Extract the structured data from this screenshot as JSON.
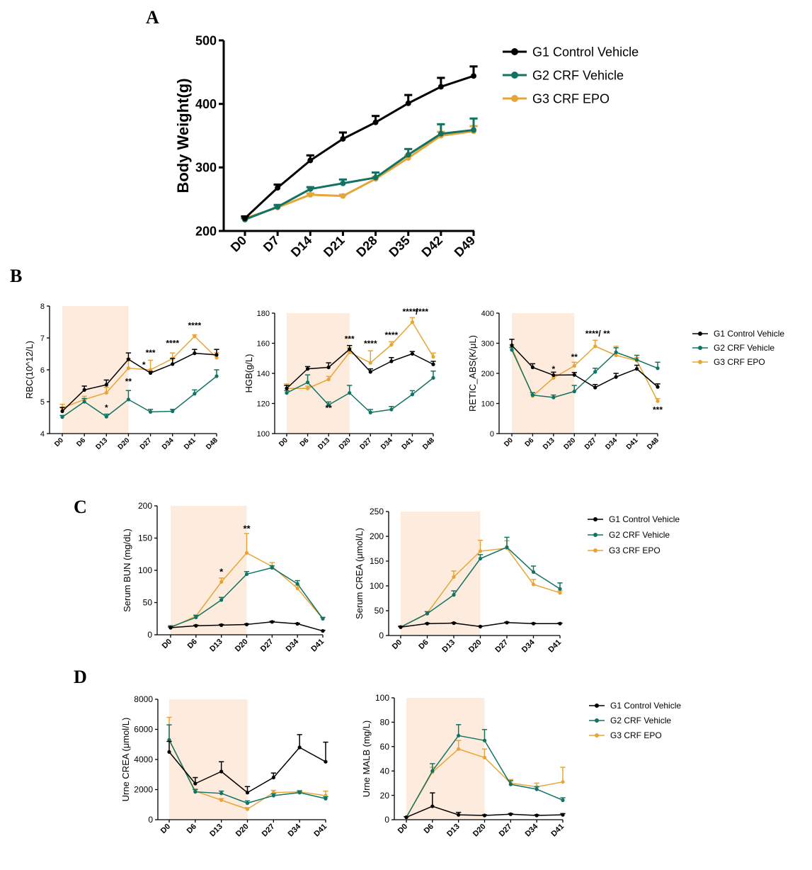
{
  "colors": {
    "G1": "#000000",
    "G2": "#127363",
    "G3": "#E8A537",
    "shade": "#FDEBDD",
    "sigBlack": "#000000",
    "sigGreen": "#127363"
  },
  "panel_labels": [
    "A",
    "B",
    "C",
    "D"
  ],
  "chart_data": [
    {
      "id": "A",
      "type": "line",
      "title": "",
      "xlabel": "",
      "ylabel": "Body Weight(g)",
      "categories": [
        "D0",
        "D7",
        "D14",
        "D21",
        "D28",
        "D35",
        "D42",
        "D49"
      ],
      "ylim": [
        200,
        500
      ],
      "yticks": [
        200,
        300,
        400,
        500
      ],
      "grid": false,
      "legend": "top-right",
      "series": [
        {
          "name": "G1 Control Vehicle",
          "values": [
            220,
            268,
            311,
            345,
            371,
            401,
            427,
            444
          ],
          "err": [
            3,
            5,
            8,
            10,
            10,
            13,
            14,
            15
          ]
        },
        {
          "name": "G2 CRF Vehicle",
          "values": [
            218,
            238,
            266,
            275,
            284,
            320,
            353,
            359
          ],
          "err": [
            2,
            3,
            3,
            6,
            8,
            9,
            15,
            18
          ]
        },
        {
          "name": "G3 CRF EPO",
          "values": [
            220,
            237,
            257,
            255,
            282,
            315,
            350,
            357
          ],
          "err": [
            2,
            2,
            2,
            2,
            3,
            4,
            6,
            8
          ]
        }
      ],
      "annotations": []
    },
    {
      "id": "B1",
      "type": "line",
      "ylabel": "RBC(10^12/L)",
      "categories": [
        "D0",
        "D6",
        "D13",
        "D20",
        "D27",
        "D34",
        "D41",
        "D48"
      ],
      "ylim": [
        4,
        8
      ],
      "yticks": [
        4,
        5,
        6,
        7,
        8
      ],
      "shade": [
        0,
        3
      ],
      "series": [
        {
          "name": "G1 Control Vehicle",
          "values": [
            4.7,
            5.37,
            5.53,
            6.33,
            5.9,
            6.18,
            6.52,
            6.47
          ],
          "err": [
            0.12,
            0.12,
            0.15,
            0.2,
            0.05,
            0.18,
            0.12,
            0.17
          ]
        },
        {
          "name": "G2 CRF Vehicle",
          "values": [
            4.52,
            5.0,
            4.53,
            5.07,
            4.68,
            4.7,
            5.25,
            5.8
          ],
          "err": [
            0.05,
            0.1,
            0.08,
            0.28,
            0.08,
            0.06,
            0.12,
            0.2
          ]
        },
        {
          "name": "G3 CRF EPO",
          "values": [
            4.8,
            5.07,
            5.28,
            6.05,
            6.0,
            6.35,
            7.05,
            6.38
          ],
          "err": [
            0.12,
            0.1,
            0.17,
            0.3,
            0.3,
            0.18,
            0.05,
            0.15
          ]
        }
      ],
      "annotations": [
        {
          "text": "*",
          "x": 2,
          "y": 4.72,
          "color": "G2"
        },
        {
          "text": "**",
          "x": 3,
          "y": 5.55,
          "color": "G2"
        },
        {
          "text": "***",
          "x": 4,
          "y": 6.45,
          "color": "G2"
        },
        {
          "text": "*",
          "x": 3.7,
          "y": 6.07,
          "color": "G2"
        },
        {
          "text": "****",
          "x": 5,
          "y": 6.75,
          "color": "G2"
        },
        {
          "text": "****",
          "x": 6,
          "y": 7.3,
          "color": "G2"
        }
      ]
    },
    {
      "id": "B2",
      "type": "line",
      "ylabel": "HGB(g/L)",
      "categories": [
        "D0",
        "D6",
        "D13",
        "D20",
        "D27",
        "D34",
        "D41",
        "D48"
      ],
      "ylim": [
        100,
        180
      ],
      "yticks": [
        100,
        120,
        140,
        160,
        180
      ],
      "shade": [
        0,
        3
      ],
      "series": [
        {
          "name": "G1 Control Vehicle",
          "values": [
            130,
            143,
            144,
            156,
            141,
            148,
            153,
            146
          ],
          "err": [
            2,
            1.5,
            3,
            2.5,
            2,
            2.5,
            1.5,
            2
          ]
        },
        {
          "name": "G2 CRF Vehicle",
          "values": [
            127,
            134,
            119,
            127,
            114,
            116,
            126,
            137
          ],
          "err": [
            1.5,
            5,
            2,
            5,
            2,
            2,
            2.5,
            4.5
          ]
        },
        {
          "name": "G3 CRF EPO",
          "values": [
            130,
            130,
            136,
            154,
            147,
            159,
            174,
            151
          ],
          "err": [
            3,
            1.5,
            2,
            3,
            8,
            2,
            3,
            2.5
          ]
        }
      ],
      "annotations": [
        {
          "text": "**",
          "x": 2,
          "y": 115,
          "color": "G2"
        },
        {
          "text": "***",
          "x": 3,
          "y": 161,
          "color": "G2"
        },
        {
          "text": "****",
          "x": 4,
          "y": 158,
          "color": "G2"
        },
        {
          "text": "****",
          "x": 5,
          "y": 163.5,
          "color": "G2"
        },
        {
          "text": "****/",
          "x": 5.9,
          "y": 179,
          "color": "G1"
        },
        {
          "text": "****",
          "x": 6.45,
          "y": 179,
          "color": "G2"
        }
      ]
    },
    {
      "id": "B3",
      "type": "line",
      "ylabel": "RETIC_ABS(K/μL)",
      "categories": [
        "D0",
        "D6",
        "D13",
        "D20",
        "D27",
        "D34",
        "D41",
        "D48"
      ],
      "ylim": [
        0,
        400
      ],
      "yticks": [
        0,
        100,
        200,
        300,
        400
      ],
      "shade": [
        0,
        3
      ],
      "series": [
        {
          "name": "G1 Control Vehicle",
          "values": [
            293,
            220,
            194,
            195,
            153,
            188,
            215,
            155
          ],
          "err": [
            20,
            12,
            10,
            8,
            10,
            12,
            12,
            10
          ]
        },
        {
          "name": "G2 CRF Vehicle",
          "values": [
            278,
            128,
            120,
            140,
            205,
            270,
            245,
            217
          ],
          "err": [
            8,
            8,
            8,
            20,
            12,
            15,
            15,
            20
          ]
        },
        {
          "name": "G3 CRF EPO",
          "values": [
            285,
            125,
            185,
            225,
            290,
            260,
            242,
            108
          ],
          "err": [
            10,
            5,
            10,
            12,
            20,
            30,
            10,
            8
          ]
        }
      ],
      "annotations": [
        {
          "text": "*",
          "x": 2,
          "y": 205,
          "color": "G2"
        },
        {
          "text": "**",
          "x": 3,
          "y": 245,
          "color": "G2"
        },
        {
          "text": "****/",
          "x": 3.9,
          "y": 322,
          "color": "G1"
        },
        {
          "text": "**",
          "x": 4.55,
          "y": 322,
          "color": "G2"
        },
        {
          "text": "***",
          "x": 7,
          "y": 70,
          "color": "G2"
        }
      ]
    },
    {
      "id": "C1",
      "type": "line",
      "ylabel": "Serum BUN (mg/dL)",
      "categories": [
        "D0",
        "D6",
        "D13",
        "D20",
        "D27",
        "D34",
        "D41"
      ],
      "ylim": [
        0,
        200
      ],
      "yticks": [
        0,
        50,
        100,
        150,
        200
      ],
      "shade": [
        0,
        3
      ],
      "series": [
        {
          "name": "G1 Control Vehicle",
          "values": [
            11,
            14,
            15,
            16,
            20,
            17,
            6
          ],
          "err": [
            1,
            1,
            1,
            1,
            1,
            1,
            1
          ]
        },
        {
          "name": "G2 CRF Vehicle",
          "values": [
            12,
            27,
            54,
            94,
            104,
            79,
            25
          ],
          "err": [
            2,
            3,
            4,
            4,
            3,
            5,
            2
          ]
        },
        {
          "name": "G3 CRF EPO",
          "values": [
            11,
            29,
            82,
            127,
            106,
            72,
            25
          ],
          "err": [
            2,
            2,
            6,
            30,
            6,
            5,
            2
          ]
        }
      ],
      "annotations": [
        {
          "text": "*",
          "x": 2,
          "y": 93,
          "color": "G2"
        },
        {
          "text": "**",
          "x": 3,
          "y": 160,
          "color": "G2"
        }
      ]
    },
    {
      "id": "C2",
      "type": "line",
      "ylabel": "Serum CREA (μmol/L)",
      "categories": [
        "D0",
        "D6",
        "D13",
        "D20",
        "D27",
        "D34",
        "D41"
      ],
      "ylim": [
        0,
        250
      ],
      "yticks": [
        0,
        50,
        100,
        150,
        200,
        250
      ],
      "shade": [
        0,
        3
      ],
      "series": [
        {
          "name": "G1 Control Vehicle",
          "values": [
            17,
            24,
            25,
            18,
            26,
            24,
            24
          ],
          "err": [
            1,
            1,
            1,
            1,
            1,
            1,
            1
          ]
        },
        {
          "name": "G2 CRF Vehicle",
          "values": [
            17,
            44,
            82,
            155,
            178,
            128,
            94
          ],
          "err": [
            2,
            4,
            8,
            8,
            20,
            12,
            12
          ]
        },
        {
          "name": "G3 CRF EPO",
          "values": [
            17,
            45,
            118,
            170,
            176,
            103,
            86
          ],
          "err": [
            2,
            3,
            12,
            22,
            15,
            10,
            4
          ]
        }
      ],
      "annotations": []
    },
    {
      "id": "D1",
      "type": "line",
      "ylabel": "Urne CREA (μmol/L)",
      "categories": [
        "D0",
        "D6",
        "D13",
        "D20",
        "D27",
        "D34",
        "D41"
      ],
      "ylim": [
        0,
        8000
      ],
      "yticks": [
        0,
        2000,
        4000,
        6000,
        8000
      ],
      "shade": [
        0,
        3
      ],
      "series": [
        {
          "name": "G1 Control Vehicle",
          "values": [
            4500,
            2400,
            3200,
            1800,
            2800,
            4800,
            3850
          ],
          "err": [
            700,
            400,
            650,
            400,
            300,
            850,
            1300
          ]
        },
        {
          "name": "G2 CRF Vehicle",
          "values": [
            5300,
            1850,
            1750,
            1100,
            1600,
            1800,
            1400
          ],
          "err": [
            1000,
            150,
            150,
            150,
            120,
            100,
            120
          ]
        },
        {
          "name": "G3 CRF EPO",
          "values": [
            5300,
            1900,
            1300,
            700,
            1800,
            1850,
            1600
          ],
          "err": [
            1500,
            150,
            100,
            100,
            150,
            100,
            300
          ]
        }
      ],
      "annotations": []
    },
    {
      "id": "D2",
      "type": "line",
      "ylabel": "Urne MALB (mg/L)",
      "categories": [
        "D0",
        "D6",
        "D13",
        "D20",
        "D27",
        "D34",
        "D41"
      ],
      "ylim": [
        0,
        100
      ],
      "yticks": [
        0,
        20,
        40,
        60,
        80,
        100
      ],
      "shade": [
        0,
        3
      ],
      "series": [
        {
          "name": "G1 Control Vehicle",
          "values": [
            2,
            11,
            4,
            3.5,
            4.5,
            3.5,
            4
          ],
          "err": [
            0.5,
            11,
            2,
            0.5,
            0.5,
            0.5,
            1
          ]
        },
        {
          "name": "G2 CRF Vehicle",
          "values": [
            2,
            40,
            69,
            65,
            29,
            25,
            16
          ],
          "err": [
            0.5,
            6,
            9,
            9,
            3,
            2,
            2
          ]
        },
        {
          "name": "G3 CRF EPO",
          "values": [
            2,
            39,
            58,
            51,
            30,
            27,
            31
          ],
          "err": [
            0.5,
            4,
            7,
            7,
            3,
            3,
            12
          ]
        }
      ],
      "annotations": []
    }
  ],
  "legends": {
    "A": [
      "G1 Control Vehicle",
      "G2 CRF Vehicle",
      "G3 CRF EPO"
    ],
    "B": [
      "G1 Control Vehicle",
      "G2 CRF Vehicle",
      "G3 CRF EPO"
    ],
    "C": [
      "G1 Control Vehicle",
      "G2 CRF Vehicle",
      "G3 CRF EPO"
    ],
    "D": [
      "G1 Control Vehicle",
      "G2 CRF Vehicle",
      "G3 CRF EPO"
    ]
  }
}
